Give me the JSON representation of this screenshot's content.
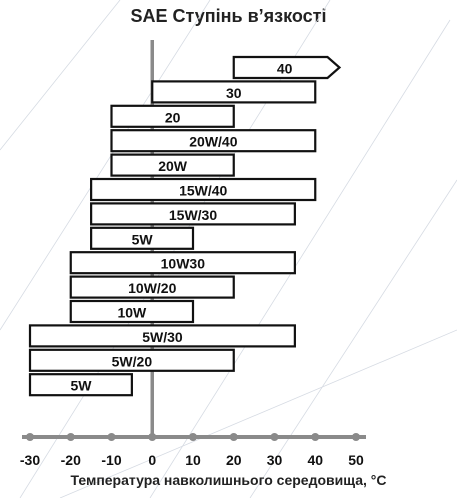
{
  "chart_data": {
    "type": "bar",
    "orientation": "horizontal",
    "title": "SAE Ступінь в’язкості",
    "xlabel": "Температура навколишнього середовища, °C",
    "ylabel": "",
    "xlim": [
      -30,
      50
    ],
    "x_ticks": [
      "-30",
      "-20",
      "-10",
      "0",
      "10",
      "20",
      "30",
      "40",
      "50"
    ],
    "grid": false,
    "legend": "none",
    "colors": {
      "bar_fill": "#ffffff",
      "bar_stroke": "#111111",
      "axis": "#8a8a8a",
      "zero_line": "#8a8a8a"
    },
    "categories": [
      "40",
      "30",
      "20",
      "20W/40",
      "20W",
      "15W/40",
      "15W/30",
      "5W",
      "10W30",
      "10W/20",
      "10W",
      "5W/30",
      "5W/20",
      "5W"
    ],
    "ranges": [
      [
        20,
        43
      ],
      [
        0,
        40
      ],
      [
        -10,
        20
      ],
      [
        -10,
        40
      ],
      [
        -10,
        20
      ],
      [
        -15,
        40
      ],
      [
        -15,
        35
      ],
      [
        -15,
        10
      ],
      [
        -20,
        35
      ],
      [
        -20,
        20
      ],
      [
        -20,
        10
      ],
      [
        -30,
        35
      ],
      [
        -30,
        20
      ],
      [
        -30,
        -5
      ]
    ],
    "arrow_right": [
      true,
      false,
      false,
      false,
      false,
      false,
      false,
      false,
      false,
      false,
      false,
      false,
      false,
      false
    ]
  }
}
